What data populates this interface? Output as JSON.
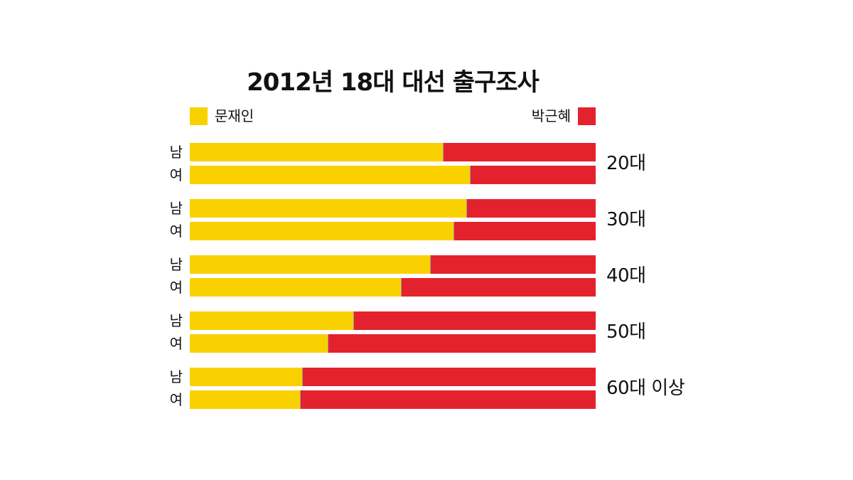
{
  "chart_data": {
    "type": "bar",
    "orientation": "horizontal",
    "stacked": true,
    "title": "2012년 18대 대선 출구조사",
    "categories": [
      "20대",
      "30대",
      "40대",
      "50대",
      "60대 이상"
    ],
    "subcategories": [
      "남",
      "여"
    ],
    "series": [
      {
        "name": "문재인",
        "color": "#F9D100",
        "values": [
          [
            62.3,
            69.0
          ],
          [
            68.1,
            65.0
          ],
          [
            59.2,
            52.0
          ],
          [
            40.3,
            34.0
          ],
          [
            27.7,
            27.1
          ]
        ]
      },
      {
        "name": "박근혜",
        "color": "#E4222D",
        "values": [
          [
            37.5,
            30.8
          ],
          [
            31.7,
            34.8
          ],
          [
            40.6,
            47.8
          ],
          [
            59.5,
            65.8
          ],
          [
            72.1,
            72.7
          ]
        ]
      }
    ],
    "xlim": [
      0,
      100
    ],
    "grid": false,
    "legend_position": "top"
  }
}
